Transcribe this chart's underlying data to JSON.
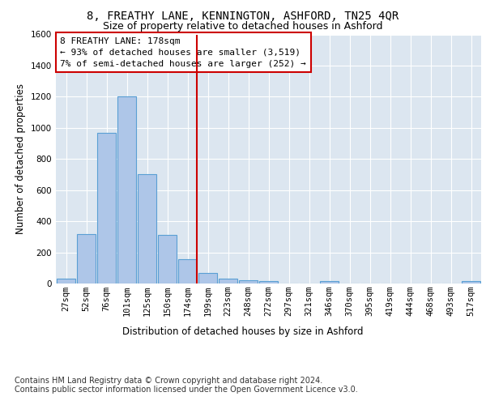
{
  "title_line1": "8, FREATHY LANE, KENNINGTON, ASHFORD, TN25 4QR",
  "title_line2": "Size of property relative to detached houses in Ashford",
  "xlabel": "Distribution of detached houses by size in Ashford",
  "ylabel": "Number of detached properties",
  "footer_line1": "Contains HM Land Registry data © Crown copyright and database right 2024.",
  "footer_line2": "Contains public sector information licensed under the Open Government Licence v3.0.",
  "annotation_line1": "8 FREATHY LANE: 178sqm",
  "annotation_line2": "← 93% of detached houses are smaller (3,519)",
  "annotation_line3": "7% of semi-detached houses are larger (252) →",
  "bin_labels": [
    "27sqm",
    "52sqm",
    "76sqm",
    "101sqm",
    "125sqm",
    "150sqm",
    "174sqm",
    "199sqm",
    "223sqm",
    "248sqm",
    "272sqm",
    "297sqm",
    "321sqm",
    "346sqm",
    "370sqm",
    "395sqm",
    "419sqm",
    "444sqm",
    "468sqm",
    "493sqm",
    "517sqm"
  ],
  "bar_values": [
    30,
    320,
    970,
    1200,
    700,
    310,
    155,
    70,
    30,
    20,
    15,
    0,
    0,
    15,
    0,
    0,
    0,
    0,
    0,
    0,
    15
  ],
  "bar_color": "#aec6e8",
  "bar_edge_color": "#5a9fd4",
  "vline_x_index": 6,
  "vline_color": "#cc0000",
  "ylim": [
    0,
    1600
  ],
  "yticks": [
    0,
    200,
    400,
    600,
    800,
    1000,
    1200,
    1400,
    1600
  ],
  "plot_bg_color": "#dce6f0",
  "annotation_box_edge_color": "#cc0000",
  "annotation_box_fill_color": "#ffffff",
  "title_fontsize": 10,
  "subtitle_fontsize": 9,
  "axis_label_fontsize": 8.5,
  "tick_fontsize": 7.5,
  "annotation_fontsize": 8,
  "footer_fontsize": 7
}
